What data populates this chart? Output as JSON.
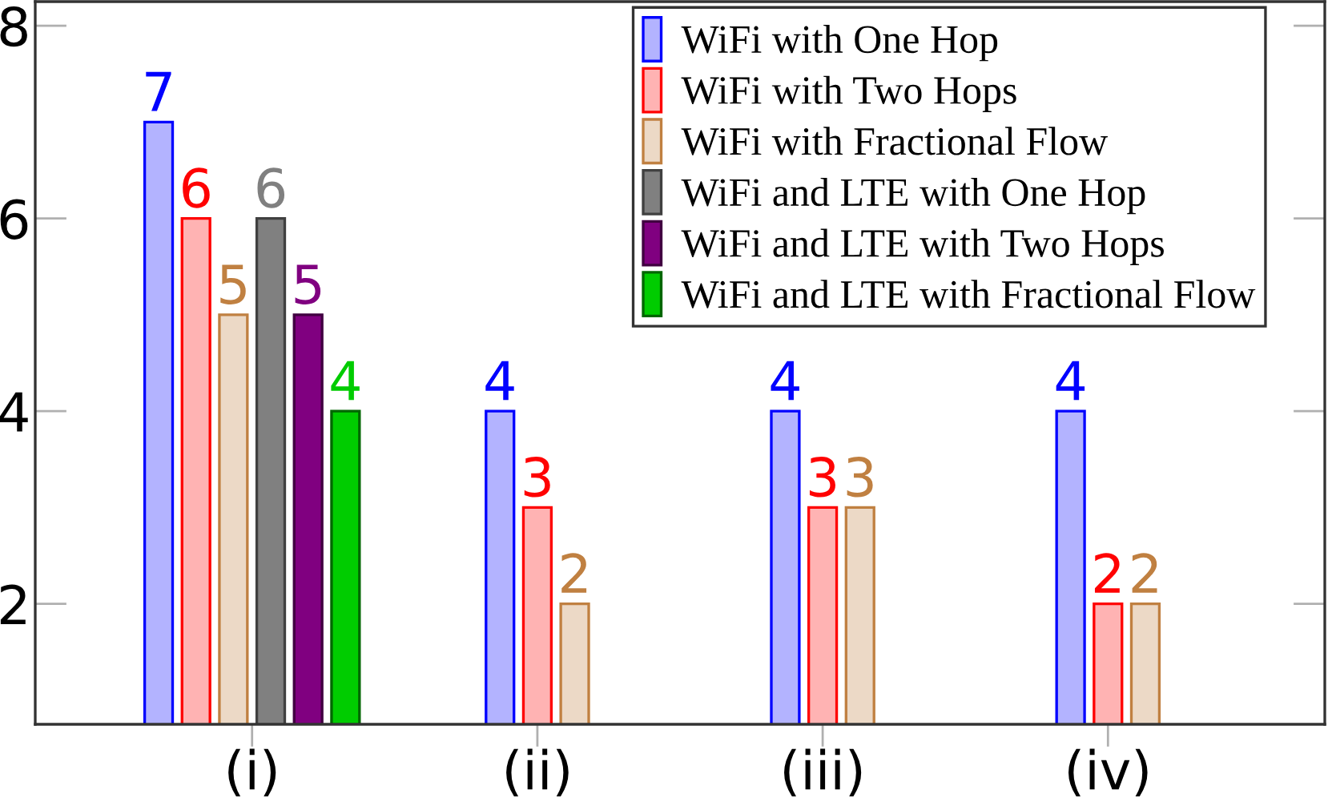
{
  "chart_data": {
    "type": "bar",
    "categories": [
      "(i)",
      "(ii)",
      "(iii)",
      "(iv)"
    ],
    "series": [
      {
        "name": "WiFi with One Hop",
        "color": "#b3b3ff",
        "values": [
          7,
          4,
          4,
          4
        ]
      },
      {
        "name": "WiFi with Two Hops",
        "color": "#ffb3b3",
        "values": [
          6,
          3,
          3,
          2
        ]
      },
      {
        "name": "WiFi with Fractional Flow",
        "color": "#ecd9c6",
        "values": [
          5,
          2,
          3,
          2
        ]
      },
      {
        "name": "WiFi and LTE with One Hop",
        "color": "#808080",
        "values": [
          6,
          null,
          null,
          null
        ]
      },
      {
        "name": "WiFi and LTE with Two Hops",
        "color": "#800080",
        "values": [
          5,
          null,
          null,
          null
        ]
      },
      {
        "name": "WiFi and LTE with Fractional Flow",
        "color": "#00cc00",
        "values": [
          4,
          null,
          null,
          null
        ]
      }
    ],
    "ylim": [
      0.75,
      8.25
    ],
    "yticks": [
      2,
      4,
      6,
      8
    ],
    "legend": "top right",
    "data_labels": true
  }
}
